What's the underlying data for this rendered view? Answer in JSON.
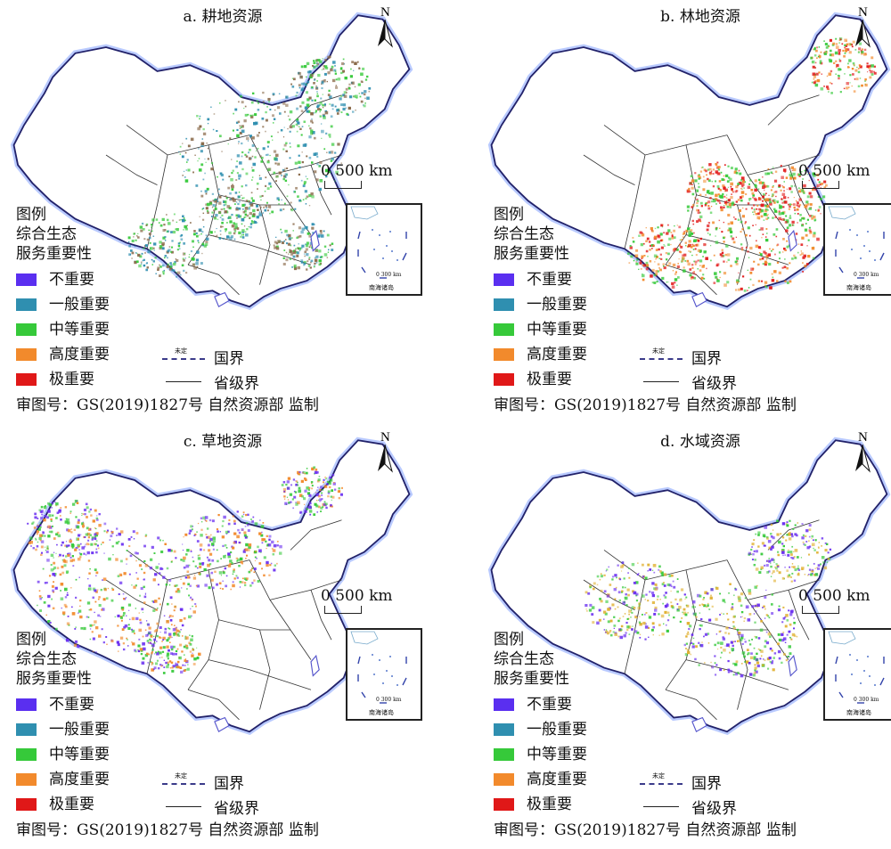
{
  "panels": [
    {
      "title": "a. 耕地资源",
      "key": "cropland",
      "dominant": [
        "#36c93a",
        "#2f8fb0",
        "#8a6a4a"
      ]
    },
    {
      "title": "b. 林地资源",
      "key": "forest",
      "dominant": [
        "#e21d1d",
        "#f28a2c",
        "#36c93a"
      ]
    },
    {
      "title": "c. 草地资源",
      "key": "grassland",
      "dominant": [
        "#36c93a",
        "#6a2ff0",
        "#f28a2c"
      ]
    },
    {
      "title": "d. 水域资源",
      "key": "water",
      "dominant": [
        "#36c93a",
        "#6a2ff0",
        "#e0b030"
      ]
    }
  ],
  "north_label": "N",
  "scale_label": "0   500 km",
  "inset": {
    "scale": "0  300 km",
    "name": "南海诸岛"
  },
  "legend": {
    "heading": "图例",
    "subtitle_line1": "综合生态",
    "subtitle_line2": "服务重要性",
    "items": [
      {
        "label": "不重要",
        "color": "#5a2ff0"
      },
      {
        "label": "一般重要",
        "color": "#2f8fb0"
      },
      {
        "label": "中等重要",
        "color": "#36c93a"
      },
      {
        "label": "高度重要",
        "color": "#f28a2c"
      },
      {
        "label": "极重要",
        "color": "#e01818"
      }
    ]
  },
  "boundary": {
    "undetermined": "未定",
    "national": "国界",
    "provincial": "省级界"
  },
  "approval": "审图号：GS(2019)1827号  自然资源部 监制"
}
